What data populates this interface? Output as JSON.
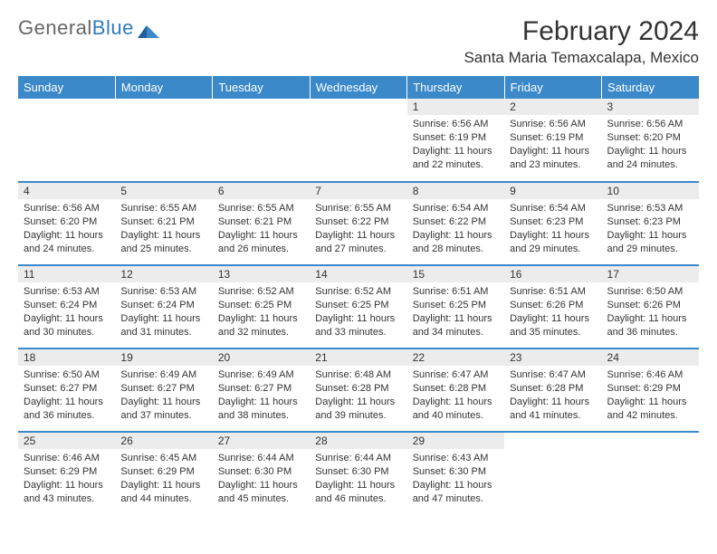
{
  "brand": {
    "part1": "General",
    "part2": "Blue"
  },
  "title": "February 2024",
  "location": "Santa Maria Temaxcalapa, Mexico",
  "colors": {
    "header_bg": "#3b89c9",
    "header_text": "#ffffff",
    "daynum_bg": "#ececec",
    "text": "#333333",
    "brand_blue": "#2f7bbf"
  },
  "weekdays": [
    "Sunday",
    "Monday",
    "Tuesday",
    "Wednesday",
    "Thursday",
    "Friday",
    "Saturday"
  ],
  "font": {
    "title_size": 30,
    "location_size": 17,
    "header_size": 13,
    "daynum_size": 12,
    "body_size": 11
  },
  "weeks": [
    [
      null,
      null,
      null,
      null,
      {
        "n": "1",
        "sr": "6:56 AM",
        "ss": "6:19 PM",
        "dl": "11 hours and 22 minutes."
      },
      {
        "n": "2",
        "sr": "6:56 AM",
        "ss": "6:19 PM",
        "dl": "11 hours and 23 minutes."
      },
      {
        "n": "3",
        "sr": "6:56 AM",
        "ss": "6:20 PM",
        "dl": "11 hours and 24 minutes."
      }
    ],
    [
      {
        "n": "4",
        "sr": "6:56 AM",
        "ss": "6:20 PM",
        "dl": "11 hours and 24 minutes."
      },
      {
        "n": "5",
        "sr": "6:55 AM",
        "ss": "6:21 PM",
        "dl": "11 hours and 25 minutes."
      },
      {
        "n": "6",
        "sr": "6:55 AM",
        "ss": "6:21 PM",
        "dl": "11 hours and 26 minutes."
      },
      {
        "n": "7",
        "sr": "6:55 AM",
        "ss": "6:22 PM",
        "dl": "11 hours and 27 minutes."
      },
      {
        "n": "8",
        "sr": "6:54 AM",
        "ss": "6:22 PM",
        "dl": "11 hours and 28 minutes."
      },
      {
        "n": "9",
        "sr": "6:54 AM",
        "ss": "6:23 PM",
        "dl": "11 hours and 29 minutes."
      },
      {
        "n": "10",
        "sr": "6:53 AM",
        "ss": "6:23 PM",
        "dl": "11 hours and 29 minutes."
      }
    ],
    [
      {
        "n": "11",
        "sr": "6:53 AM",
        "ss": "6:24 PM",
        "dl": "11 hours and 30 minutes."
      },
      {
        "n": "12",
        "sr": "6:53 AM",
        "ss": "6:24 PM",
        "dl": "11 hours and 31 minutes."
      },
      {
        "n": "13",
        "sr": "6:52 AM",
        "ss": "6:25 PM",
        "dl": "11 hours and 32 minutes."
      },
      {
        "n": "14",
        "sr": "6:52 AM",
        "ss": "6:25 PM",
        "dl": "11 hours and 33 minutes."
      },
      {
        "n": "15",
        "sr": "6:51 AM",
        "ss": "6:25 PM",
        "dl": "11 hours and 34 minutes."
      },
      {
        "n": "16",
        "sr": "6:51 AM",
        "ss": "6:26 PM",
        "dl": "11 hours and 35 minutes."
      },
      {
        "n": "17",
        "sr": "6:50 AM",
        "ss": "6:26 PM",
        "dl": "11 hours and 36 minutes."
      }
    ],
    [
      {
        "n": "18",
        "sr": "6:50 AM",
        "ss": "6:27 PM",
        "dl": "11 hours and 36 minutes."
      },
      {
        "n": "19",
        "sr": "6:49 AM",
        "ss": "6:27 PM",
        "dl": "11 hours and 37 minutes."
      },
      {
        "n": "20",
        "sr": "6:49 AM",
        "ss": "6:27 PM",
        "dl": "11 hours and 38 minutes."
      },
      {
        "n": "21",
        "sr": "6:48 AM",
        "ss": "6:28 PM",
        "dl": "11 hours and 39 minutes."
      },
      {
        "n": "22",
        "sr": "6:47 AM",
        "ss": "6:28 PM",
        "dl": "11 hours and 40 minutes."
      },
      {
        "n": "23",
        "sr": "6:47 AM",
        "ss": "6:28 PM",
        "dl": "11 hours and 41 minutes."
      },
      {
        "n": "24",
        "sr": "6:46 AM",
        "ss": "6:29 PM",
        "dl": "11 hours and 42 minutes."
      }
    ],
    [
      {
        "n": "25",
        "sr": "6:46 AM",
        "ss": "6:29 PM",
        "dl": "11 hours and 43 minutes."
      },
      {
        "n": "26",
        "sr": "6:45 AM",
        "ss": "6:29 PM",
        "dl": "11 hours and 44 minutes."
      },
      {
        "n": "27",
        "sr": "6:44 AM",
        "ss": "6:30 PM",
        "dl": "11 hours and 45 minutes."
      },
      {
        "n": "28",
        "sr": "6:44 AM",
        "ss": "6:30 PM",
        "dl": "11 hours and 46 minutes."
      },
      {
        "n": "29",
        "sr": "6:43 AM",
        "ss": "6:30 PM",
        "dl": "11 hours and 47 minutes."
      },
      null,
      null
    ]
  ],
  "labels": {
    "sunrise": "Sunrise:",
    "sunset": "Sunset:",
    "daylight": "Daylight:"
  }
}
